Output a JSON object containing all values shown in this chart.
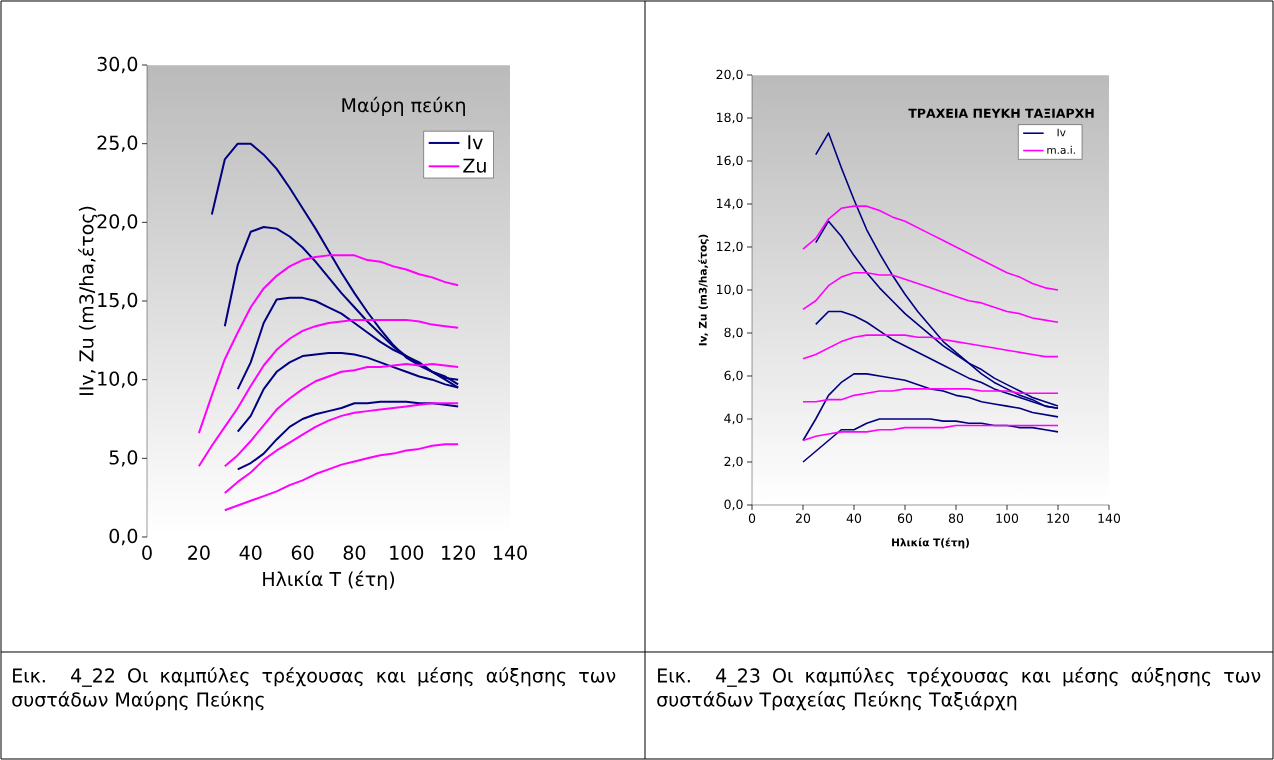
{
  "chart_data": [
    {
      "type": "line",
      "title": "Μαύρη πεύκη",
      "xlabel": "Ηλικία Τ (έτη)",
      "ylabel": "IIv, Zu (m3/ha,έτος)",
      "xlim": [
        0,
        140
      ],
      "xticks": [
        0,
        20,
        40,
        60,
        80,
        100,
        120,
        140
      ],
      "ylim": [
        0,
        30
      ],
      "yticks": [
        {
          "value": 0,
          "label": "0,0"
        },
        {
          "value": 5,
          "label": "5,0"
        },
        {
          "value": 10,
          "label": "10,0"
        },
        {
          "value": 15,
          "label": "15,0"
        },
        {
          "value": 20,
          "label": "20,0"
        },
        {
          "value": 25,
          "label": "25,0"
        },
        {
          "value": 30,
          "label": "30,0"
        }
      ],
      "legend": "top right",
      "grid": false,
      "marker": "none",
      "line_style": "solid",
      "annotations": [
        "Εικ. 4_22 Οι καμπύλες τρέχουσας και μέσης αύξησης των συστάδων Μαύρης Πεύκης"
      ],
      "series": [
        {
          "name": "Iv",
          "color": "#000080",
          "x": [
            25,
            30,
            35,
            40,
            45,
            50,
            55,
            60,
            65,
            70,
            75,
            80,
            85,
            90,
            95,
            100,
            105,
            110,
            115,
            120
          ],
          "values": [
            20.5,
            24.0,
            25.0,
            25.0,
            24.3,
            23.4,
            22.2,
            20.9,
            19.6,
            18.2,
            16.8,
            15.5,
            14.3,
            13.2,
            12.2,
            11.4,
            10.9,
            10.5,
            10.1,
            10.0
          ]
        },
        {
          "color": "#000080",
          "x": [
            30,
            35,
            40,
            45,
            50,
            55,
            60,
            65,
            70,
            75,
            80,
            85,
            90,
            95,
            100,
            105,
            110,
            115,
            120
          ],
          "values": [
            13.4,
            17.3,
            19.4,
            19.7,
            19.6,
            19.1,
            18.4,
            17.5,
            16.5,
            15.5,
            14.6,
            13.7,
            12.9,
            12.1,
            11.5,
            11.0,
            10.5,
            10.0,
            9.5
          ]
        },
        {
          "color": "#000080",
          "x": [
            35,
            40,
            45,
            50,
            55,
            60,
            65,
            70,
            75,
            80,
            85,
            90,
            95,
            100,
            105,
            110,
            115,
            120
          ],
          "values": [
            9.4,
            11.1,
            13.6,
            15.1,
            15.2,
            15.2,
            15.0,
            14.6,
            14.2,
            13.6,
            13.0,
            12.4,
            11.9,
            11.5,
            11.1,
            10.5,
            10.2,
            9.7
          ]
        },
        {
          "color": "#000080",
          "x": [
            35,
            40,
            45,
            50,
            55,
            60,
            65,
            70,
            75,
            80,
            85,
            90,
            95,
            100,
            105,
            110,
            115,
            120
          ],
          "values": [
            6.7,
            7.7,
            9.4,
            10.5,
            11.1,
            11.5,
            11.6,
            11.7,
            11.7,
            11.6,
            11.4,
            11.1,
            10.8,
            10.5,
            10.2,
            10.0,
            9.7,
            9.5
          ]
        },
        {
          "color": "#000080",
          "x": [
            35,
            40,
            45,
            50,
            55,
            60,
            65,
            70,
            75,
            80,
            85,
            90,
            95,
            100,
            105,
            110,
            115,
            120
          ],
          "values": [
            4.3,
            4.7,
            5.3,
            6.2,
            7.0,
            7.5,
            7.8,
            8.0,
            8.2,
            8.5,
            8.5,
            8.6,
            8.6,
            8.6,
            8.5,
            8.5,
            8.4,
            8.3
          ]
        },
        {
          "name": "Zu",
          "color": "#ff00ff",
          "x": [
            20,
            25,
            30,
            35,
            40,
            45,
            50,
            55,
            60,
            65,
            70,
            75,
            80,
            85,
            90,
            95,
            100,
            105,
            110,
            115,
            120
          ],
          "values": [
            6.6,
            9.0,
            11.3,
            13.0,
            14.6,
            15.8,
            16.6,
            17.2,
            17.6,
            17.8,
            17.9,
            17.9,
            17.9,
            17.6,
            17.5,
            17.2,
            17.0,
            16.7,
            16.5,
            16.2,
            16.0
          ]
        },
        {
          "color": "#ff00ff",
          "x": [
            20,
            25,
            30,
            35,
            40,
            45,
            50,
            55,
            60,
            65,
            70,
            75,
            80,
            85,
            90,
            95,
            100,
            105,
            110,
            115,
            120
          ],
          "values": [
            4.5,
            5.8,
            7.0,
            8.2,
            9.6,
            10.9,
            11.9,
            12.6,
            13.1,
            13.4,
            13.6,
            13.7,
            13.8,
            13.8,
            13.8,
            13.8,
            13.8,
            13.7,
            13.5,
            13.4,
            13.3
          ]
        },
        {
          "color": "#ff00ff",
          "x": [
            30,
            35,
            40,
            45,
            50,
            55,
            60,
            65,
            70,
            75,
            80,
            85,
            90,
            95,
            100,
            105,
            110,
            115,
            120
          ],
          "values": [
            4.5,
            5.2,
            6.1,
            7.1,
            8.1,
            8.8,
            9.4,
            9.9,
            10.2,
            10.5,
            10.6,
            10.8,
            10.8,
            10.9,
            11.0,
            10.9,
            11.0,
            10.9,
            10.8
          ]
        },
        {
          "color": "#ff00ff",
          "x": [
            30,
            35,
            40,
            45,
            50,
            55,
            60,
            65,
            70,
            75,
            80,
            85,
            90,
            95,
            100,
            105,
            110,
            115,
            120
          ],
          "values": [
            2.8,
            3.5,
            4.1,
            4.9,
            5.5,
            6.0,
            6.5,
            7.0,
            7.4,
            7.7,
            7.9,
            8.0,
            8.1,
            8.2,
            8.3,
            8.4,
            8.5,
            8.5,
            8.5
          ]
        },
        {
          "color": "#ff00ff",
          "x": [
            30,
            35,
            40,
            45,
            50,
            55,
            60,
            65,
            70,
            75,
            80,
            85,
            90,
            95,
            100,
            105,
            110,
            115,
            120
          ],
          "values": [
            1.7,
            2.0,
            2.3,
            2.6,
            2.9,
            3.3,
            3.6,
            4.0,
            4.3,
            4.6,
            4.8,
            5.0,
            5.2,
            5.3,
            5.5,
            5.6,
            5.8,
            5.9,
            5.9
          ]
        }
      ]
    },
    {
      "type": "line",
      "title": "ΤΡΑΧΕΙΑ ΠΕΥΚΗ ΤΑΞΙΑΡΧΗ",
      "xlabel": "Ηλικία Τ(έτη)",
      "ylabel": "Iv, Zu (m3/ha,έτος)",
      "xlim": [
        0,
        140
      ],
      "xticks": [
        0,
        20,
        40,
        60,
        80,
        100,
        120,
        140
      ],
      "ylim": [
        0,
        20
      ],
      "yticks": [
        {
          "value": 0,
          "label": "0,0"
        },
        {
          "value": 2,
          "label": "2,0"
        },
        {
          "value": 4,
          "label": "4,0"
        },
        {
          "value": 6,
          "label": "6,0"
        },
        {
          "value": 8,
          "label": "8,0"
        },
        {
          "value": 10,
          "label": "10,0"
        },
        {
          "value": 12,
          "label": "12,0"
        },
        {
          "value": 14,
          "label": "14,0"
        },
        {
          "value": 16,
          "label": "16,0"
        },
        {
          "value": 18,
          "label": "18,0"
        },
        {
          "value": 20,
          "label": "20,0"
        }
      ],
      "legend": "top right",
      "grid": false,
      "marker": "none",
      "line_style": "solid",
      "annotations": [
        "Εικ. 4_23 Οι καμπύλες τρέχουσας και μέσης αύξησης των συστάδων Τραχείας Πεύκης Ταξιάρχη"
      ],
      "series": [
        {
          "name": "Iv",
          "color": "#000080",
          "x": [
            25,
            30,
            35,
            40,
            45,
            50,
            55,
            60,
            65,
            70,
            75,
            80,
            85,
            90,
            95,
            100,
            105,
            110,
            115,
            120
          ],
          "values": [
            16.3,
            17.3,
            15.7,
            14.2,
            12.8,
            11.7,
            10.7,
            9.8,
            9.0,
            8.3,
            7.6,
            7.1,
            6.6,
            6.1,
            5.7,
            5.4,
            5.1,
            4.9,
            4.6,
            4.5
          ]
        },
        {
          "color": "#000080",
          "x": [
            25,
            30,
            35,
            40,
            45,
            50,
            55,
            60,
            65,
            70,
            75,
            80,
            85,
            90,
            95,
            100,
            105,
            110,
            115,
            120
          ],
          "values": [
            12.2,
            13.2,
            12.5,
            11.6,
            10.8,
            10.1,
            9.5,
            8.9,
            8.4,
            7.9,
            7.4,
            7.0,
            6.6,
            6.3,
            5.9,
            5.6,
            5.3,
            5.0,
            4.8,
            4.6
          ]
        },
        {
          "color": "#000080",
          "x": [
            25,
            30,
            35,
            40,
            45,
            50,
            55,
            60,
            65,
            70,
            75,
            80,
            85,
            90,
            95,
            100,
            105,
            110,
            115,
            120
          ],
          "values": [
            8.4,
            9.0,
            9.0,
            8.8,
            8.5,
            8.1,
            7.7,
            7.4,
            7.1,
            6.8,
            6.5,
            6.2,
            5.9,
            5.7,
            5.4,
            5.2,
            5.0,
            4.8,
            4.6,
            4.5
          ]
        },
        {
          "color": "#000080",
          "x": [
            20,
            25,
            30,
            35,
            40,
            45,
            50,
            55,
            60,
            65,
            70,
            75,
            80,
            85,
            90,
            95,
            100,
            105,
            110,
            115,
            120
          ],
          "values": [
            3.0,
            4.0,
            5.1,
            5.7,
            6.1,
            6.1,
            6.0,
            5.9,
            5.8,
            5.6,
            5.4,
            5.3,
            5.1,
            5.0,
            4.8,
            4.7,
            4.6,
            4.5,
            4.3,
            4.2,
            4.1
          ]
        },
        {
          "color": "#000080",
          "x": [
            20,
            25,
            30,
            35,
            40,
            45,
            50,
            55,
            60,
            65,
            70,
            75,
            80,
            85,
            90,
            95,
            100,
            105,
            110,
            115,
            120
          ],
          "values": [
            2.0,
            2.5,
            3.0,
            3.5,
            3.5,
            3.8,
            4.0,
            4.0,
            4.0,
            4.0,
            4.0,
            3.9,
            3.9,
            3.8,
            3.8,
            3.7,
            3.7,
            3.6,
            3.6,
            3.5,
            3.4
          ]
        },
        {
          "name": "m.a.i.",
          "color": "#ff00ff",
          "x": [
            20,
            25,
            30,
            35,
            40,
            45,
            50,
            55,
            60,
            65,
            70,
            75,
            80,
            85,
            90,
            95,
            100,
            105,
            110,
            115,
            120
          ],
          "values": [
            11.9,
            12.4,
            13.3,
            13.8,
            13.9,
            13.9,
            13.7,
            13.4,
            13.2,
            12.9,
            12.6,
            12.3,
            12.0,
            11.7,
            11.4,
            11.1,
            10.8,
            10.6,
            10.3,
            10.1,
            10.0
          ]
        },
        {
          "color": "#ff00ff",
          "x": [
            20,
            25,
            30,
            35,
            40,
            45,
            50,
            55,
            60,
            65,
            70,
            75,
            80,
            85,
            90,
            95,
            100,
            105,
            110,
            115,
            120
          ],
          "values": [
            9.1,
            9.5,
            10.2,
            10.6,
            10.8,
            10.8,
            10.7,
            10.7,
            10.5,
            10.3,
            10.1,
            9.9,
            9.7,
            9.5,
            9.4,
            9.2,
            9.0,
            8.9,
            8.7,
            8.6,
            8.5
          ]
        },
        {
          "color": "#ff00ff",
          "x": [
            20,
            25,
            30,
            35,
            40,
            45,
            50,
            55,
            60,
            65,
            70,
            75,
            80,
            85,
            90,
            95,
            100,
            105,
            110,
            115,
            120
          ],
          "values": [
            6.8,
            7.0,
            7.3,
            7.6,
            7.8,
            7.9,
            7.9,
            7.9,
            7.9,
            7.8,
            7.8,
            7.7,
            7.6,
            7.5,
            7.4,
            7.3,
            7.2,
            7.1,
            7.0,
            6.9,
            6.9
          ]
        },
        {
          "color": "#ff00ff",
          "x": [
            20,
            25,
            30,
            35,
            40,
            45,
            50,
            55,
            60,
            65,
            70,
            75,
            80,
            85,
            90,
            95,
            100,
            105,
            110,
            115,
            120
          ],
          "values": [
            4.8,
            4.8,
            4.9,
            4.9,
            5.1,
            5.2,
            5.3,
            5.3,
            5.4,
            5.4,
            5.4,
            5.4,
            5.4,
            5.4,
            5.3,
            5.3,
            5.3,
            5.2,
            5.2,
            5.2,
            5.2
          ]
        },
        {
          "color": "#ff00ff",
          "x": [
            20,
            25,
            30,
            35,
            40,
            45,
            50,
            55,
            60,
            65,
            70,
            75,
            80,
            85,
            90,
            95,
            100,
            105,
            110,
            115,
            120
          ],
          "values": [
            3.0,
            3.2,
            3.3,
            3.4,
            3.4,
            3.4,
            3.5,
            3.5,
            3.6,
            3.6,
            3.6,
            3.6,
            3.7,
            3.7,
            3.7,
            3.7,
            3.7,
            3.7,
            3.7,
            3.7,
            3.7
          ]
        }
      ]
    }
  ]
}
